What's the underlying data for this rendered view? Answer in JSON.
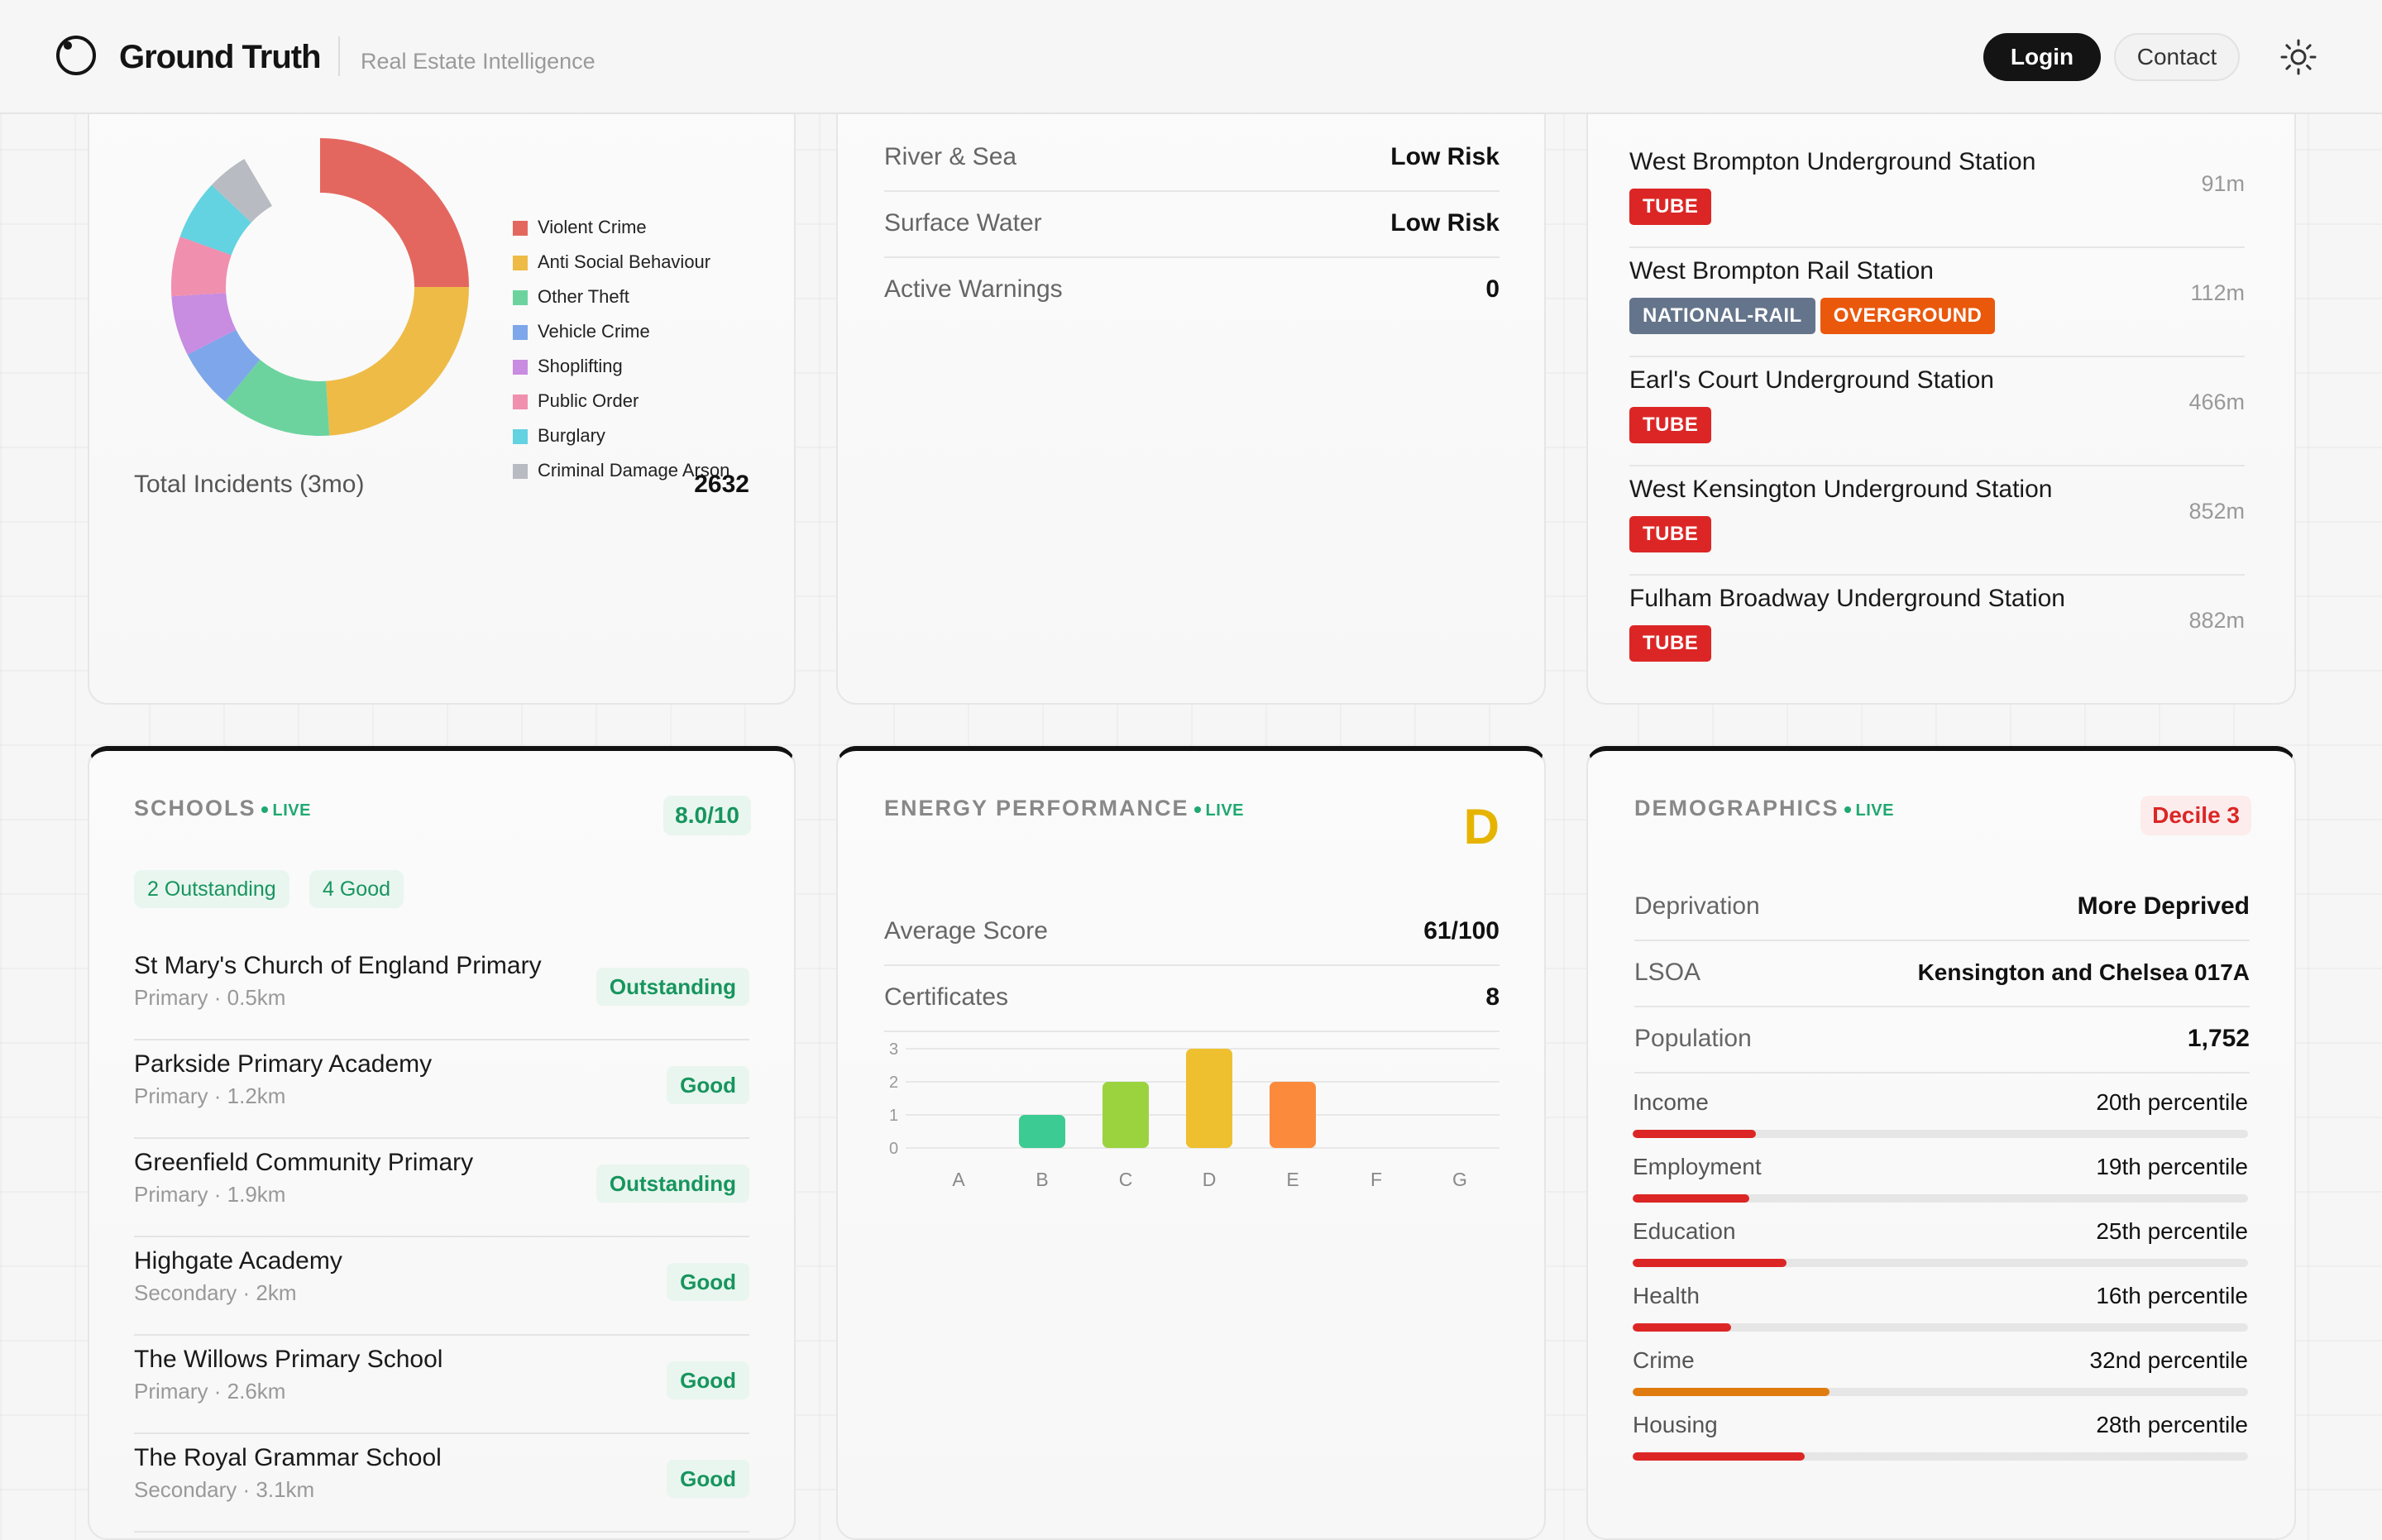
{
  "header": {
    "brand": "Ground Truth",
    "tagline": "Real Estate Intelligence",
    "login_label": "Login",
    "contact_label": "Contact"
  },
  "crime": {
    "legend": [
      {
        "label": "Violent Crime",
        "color": "#e4675f"
      },
      {
        "label": "Anti Social Behaviour",
        "color": "#eebb47"
      },
      {
        "label": "Other Theft",
        "color": "#6cd39e"
      },
      {
        "label": "Vehicle Crime",
        "color": "#7ea6ea"
      },
      {
        "label": "Shoplifting",
        "color": "#c88ce1"
      },
      {
        "label": "Public Order",
        "color": "#f08fae"
      },
      {
        "label": "Burglary",
        "color": "#63d2e1"
      },
      {
        "label": "Criminal Damage Arson",
        "color": "#b9bbc2"
      }
    ],
    "total_label": "Total Incidents (3mo)",
    "total_value": "2632"
  },
  "flood": {
    "rows": [
      {
        "label": "River & Sea",
        "value": "Low Risk"
      },
      {
        "label": "Surface Water",
        "value": "Low Risk"
      },
      {
        "label": "Active Warnings",
        "value": "0"
      }
    ]
  },
  "transport": {
    "stations": [
      {
        "name": "West Brompton Underground Station",
        "distance": "91m",
        "badges": [
          {
            "label": "TUBE",
            "color": "#dc2626"
          }
        ]
      },
      {
        "name": "West Brompton Rail Station",
        "distance": "112m",
        "badges": [
          {
            "label": "NATIONAL-RAIL",
            "color": "#64748b"
          },
          {
            "label": "OVERGROUND",
            "color": "#ea580c"
          }
        ]
      },
      {
        "name": "Earl's Court Underground Station",
        "distance": "466m",
        "badges": [
          {
            "label": "TUBE",
            "color": "#dc2626"
          }
        ]
      },
      {
        "name": "West Kensington Underground Station",
        "distance": "852m",
        "badges": [
          {
            "label": "TUBE",
            "color": "#dc2626"
          }
        ]
      },
      {
        "name": "Fulham Broadway Underground Station",
        "distance": "882m",
        "badges": [
          {
            "label": "TUBE",
            "color": "#dc2626"
          }
        ]
      }
    ]
  },
  "schools": {
    "title": "SCHOOLS",
    "live": "LIVE",
    "score": "8.0/10",
    "summary": [
      "2 Outstanding",
      "4 Good"
    ],
    "list": [
      {
        "name": "St Mary's Church of England Primary",
        "sub": "Primary · 0.5km",
        "rating": "Outstanding"
      },
      {
        "name": "Parkside Primary Academy",
        "sub": "Primary · 1.2km",
        "rating": "Good"
      },
      {
        "name": "Greenfield Community Primary",
        "sub": "Primary · 1.9km",
        "rating": "Outstanding"
      },
      {
        "name": "Highgate Academy",
        "sub": "Secondary · 2km",
        "rating": "Good"
      },
      {
        "name": "The Willows Primary School",
        "sub": "Primary · 2.6km",
        "rating": "Good"
      },
      {
        "name": "The Royal Grammar School",
        "sub": "Secondary · 3.1km",
        "rating": "Good"
      }
    ]
  },
  "energy": {
    "title": "ENERGY PERFORMANCE",
    "live": "LIVE",
    "grade": "D",
    "grade_color": "#e6b400",
    "rows": [
      {
        "label": "Average Score",
        "value": "61/100"
      },
      {
        "label": "Certificates",
        "value": "8"
      }
    ]
  },
  "chart_data": {
    "type": "bar",
    "categories": [
      "A",
      "B",
      "C",
      "D",
      "E",
      "F",
      "G"
    ],
    "values": [
      0,
      1,
      2,
      3,
      2,
      0,
      0
    ],
    "colors": [
      "#1fa870",
      "#3ccb92",
      "#9bd33f",
      "#eec02f",
      "#fb8a3c",
      "#f05a3a",
      "#d9262a"
    ],
    "yticks": [
      0,
      1,
      2,
      3
    ],
    "ylim": [
      0,
      3
    ],
    "grid": true
  },
  "demographics": {
    "title": "DEMOGRAPHICS",
    "live": "LIVE",
    "decile": "Decile 3",
    "rows": [
      {
        "label": "Deprivation",
        "value": "More Deprived"
      },
      {
        "label": "LSOA",
        "value": "Kensington and Chelsea 017A"
      },
      {
        "label": "Population",
        "value": "1,752"
      }
    ],
    "percentiles": [
      {
        "label": "Income",
        "value": "20th percentile",
        "pct": 20,
        "color": "#dc2626"
      },
      {
        "label": "Employment",
        "value": "19th percentile",
        "pct": 19,
        "color": "#dc2626"
      },
      {
        "label": "Education",
        "value": "25th percentile",
        "pct": 25,
        "color": "#dc2626"
      },
      {
        "label": "Health",
        "value": "16th percentile",
        "pct": 16,
        "color": "#dc2626"
      },
      {
        "label": "Crime",
        "value": "32nd percentile",
        "pct": 32,
        "color": "#e07b10"
      },
      {
        "label": "Housing",
        "value": "28th percentile",
        "pct": 28,
        "color": "#dc2626"
      }
    ]
  }
}
